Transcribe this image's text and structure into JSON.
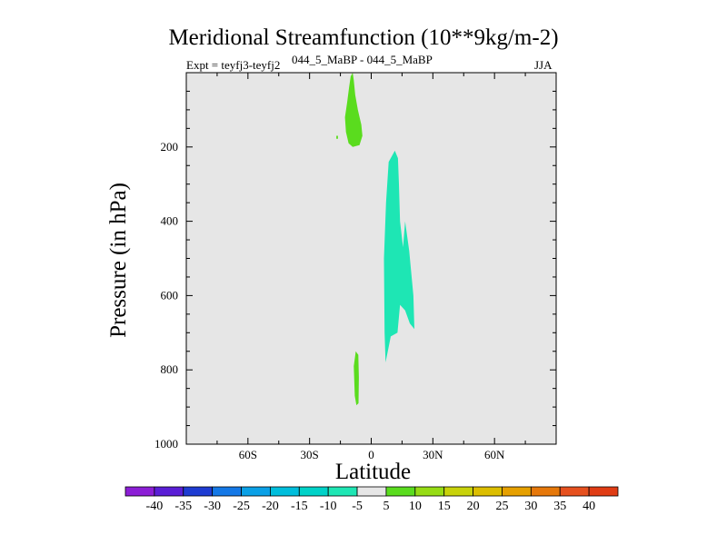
{
  "header": {
    "title": "Meridional Streamfunction (10**9kg/m-2)",
    "expt": "Expt = teyfj3-teyfj2",
    "runs": "044_5_MaBP - 044_5_MaBP",
    "season": "JJA"
  },
  "chart_data": {
    "type": "heatmap",
    "title": "Meridional Streamfunction (10**9kg/m-2)",
    "xlabel": "Latitude",
    "ylabel": "Pressure (in hPa)",
    "xlim": [
      -90,
      90
    ],
    "ylim": [
      0,
      1000
    ],
    "y_inverted": true,
    "x_ticks": [
      {
        "value": -60,
        "label": "60S"
      },
      {
        "value": -30,
        "label": "30S"
      },
      {
        "value": 0,
        "label": "0"
      },
      {
        "value": 30,
        "label": "30N"
      },
      {
        "value": 60,
        "label": "60N"
      }
    ],
    "y_ticks": [
      200,
      400,
      600,
      800,
      1000
    ],
    "background_color": "#e6e6e6",
    "colorbar": {
      "labels": [
        "-40",
        "-35",
        "-30",
        "-25",
        "-20",
        "-15",
        "-10",
        "-5",
        "5",
        "10",
        "15",
        "20",
        "25",
        "30",
        "35",
        "40"
      ],
      "colors": [
        "#8c1ed6",
        "#5a1ed6",
        "#1e3cd2",
        "#1478e6",
        "#0aa0e6",
        "#00bedc",
        "#00d2c8",
        "#1ee6b4",
        "#e6e6e6",
        "#5adc1e",
        "#96dc14",
        "#c8d20a",
        "#dcbe00",
        "#e6a000",
        "#e6780a",
        "#e6501e",
        "#e03c14"
      ]
    },
    "regions": [
      {
        "name": "upper-positive-cell",
        "range": "5 to 10",
        "color": "#5adc1e",
        "points": [
          [
            -9,
            0
          ],
          [
            -8.5,
            20
          ],
          [
            -7.8,
            60
          ],
          [
            -6.5,
            100
          ],
          [
            -4.8,
            140
          ],
          [
            -4.3,
            170
          ],
          [
            -5.7,
            195
          ],
          [
            -9,
            200
          ],
          [
            -11,
            190
          ],
          [
            -12.3,
            160
          ],
          [
            -12.8,
            120
          ],
          [
            -11.7,
            80
          ],
          [
            -10.8,
            40
          ],
          [
            -10,
            10
          ]
        ]
      },
      {
        "name": "upper-positive-speck",
        "range": "5 to 10",
        "color": "#5adc1e",
        "points": [
          [
            -17,
            170
          ],
          [
            -16.2,
            170
          ],
          [
            -16.2,
            178
          ],
          [
            -17,
            178
          ]
        ]
      },
      {
        "name": "lower-positive-cell",
        "range": "5 to 10",
        "color": "#5adc1e",
        "points": [
          [
            -7.5,
            750
          ],
          [
            -6.3,
            760
          ],
          [
            -6,
            820
          ],
          [
            -6.2,
            890
          ],
          [
            -7.2,
            895
          ],
          [
            -8,
            870
          ],
          [
            -8.5,
            790
          ]
        ]
      },
      {
        "name": "tropical-negative-cell",
        "range": "-10 to -5",
        "color": "#1ee6b4",
        "points": [
          [
            11.5,
            210
          ],
          [
            13,
            230
          ],
          [
            13.5,
            300
          ],
          [
            14,
            400
          ],
          [
            15.5,
            470
          ],
          [
            16.5,
            400
          ],
          [
            18.5,
            480
          ],
          [
            20.5,
            600
          ],
          [
            21,
            690
          ],
          [
            18.8,
            675
          ],
          [
            16.5,
            640
          ],
          [
            14,
            625
          ],
          [
            12.8,
            700
          ],
          [
            9.5,
            710
          ],
          [
            7,
            780
          ],
          [
            6.5,
            700
          ],
          [
            6.2,
            500
          ],
          [
            7.2,
            350
          ],
          [
            8.5,
            240
          ]
        ]
      }
    ]
  }
}
